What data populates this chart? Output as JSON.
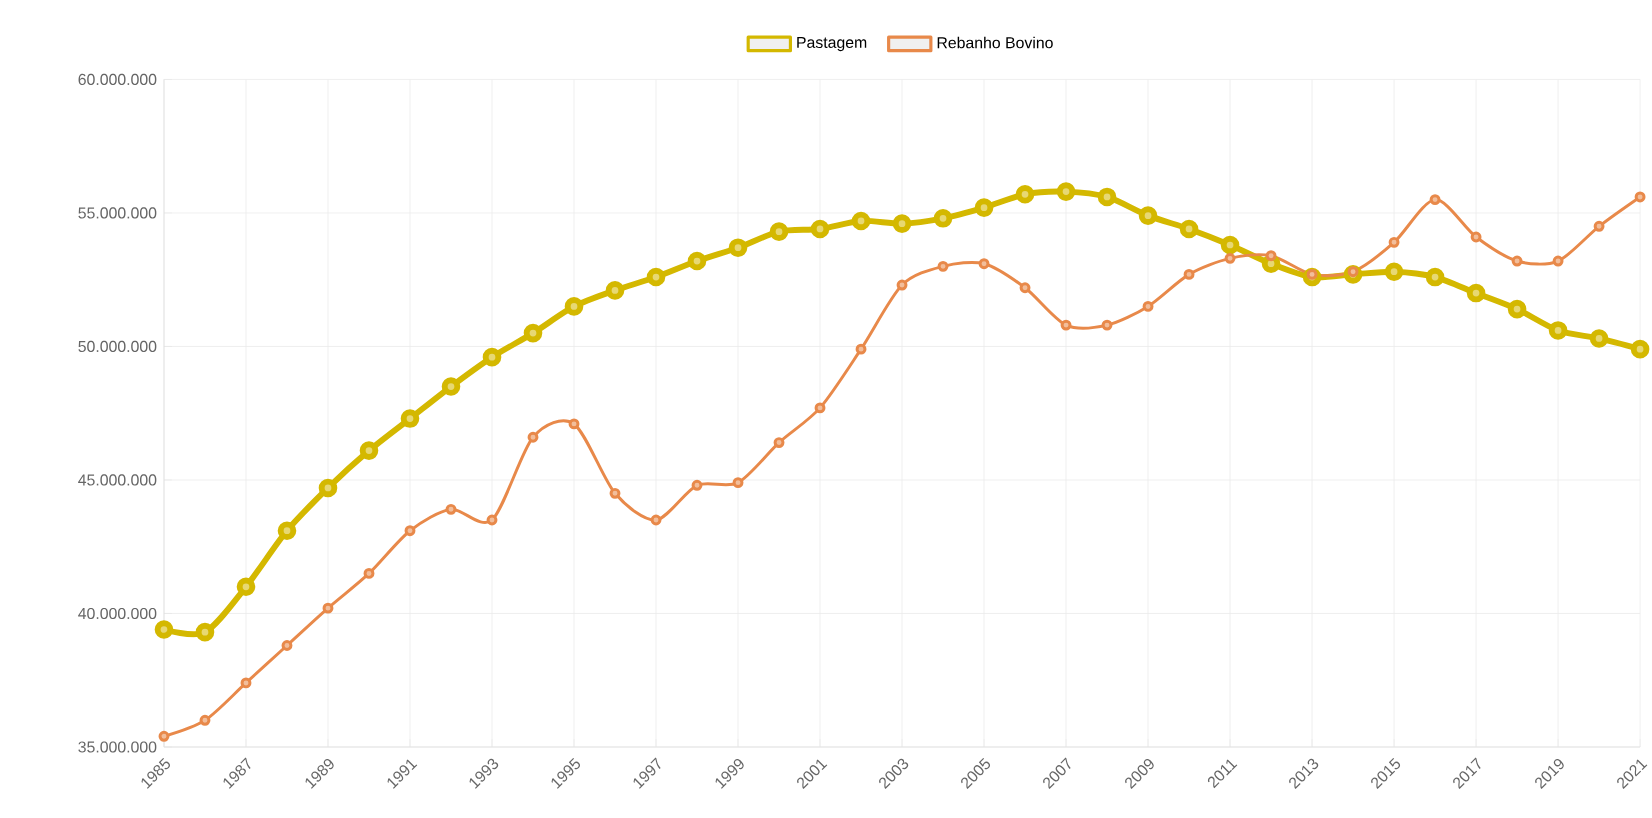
{
  "chart_data": {
    "type": "line",
    "categories": [
      "1985",
      null,
      "1987",
      null,
      "1989",
      null,
      "1991",
      null,
      "1993",
      null,
      "1995",
      null,
      "1997",
      null,
      "1999",
      null,
      "2001",
      null,
      "2003",
      null,
      "2005",
      null,
      "2007",
      null,
      "2009",
      null,
      "2011",
      null,
      "2013",
      null,
      "2015",
      null,
      "2017",
      null,
      "2019",
      null,
      "2021"
    ],
    "series": [
      {
        "name": "Pastagem",
        "color": "#d4b800",
        "values": [
          39400000,
          39300000,
          41000000,
          43100000,
          44700000,
          46100000,
          47300000,
          48500000,
          49600000,
          50500000,
          51500000,
          52100000,
          52600000,
          53200000,
          53700000,
          54300000,
          54400000,
          54700000,
          54600000,
          54800000,
          55200000,
          55700000,
          55800000,
          55600000,
          54900000,
          54400000,
          53800000,
          53100000,
          52600000,
          52700000,
          52800000,
          52600000,
          52000000,
          51400000,
          50600000,
          50300000,
          49900000
        ]
      },
      {
        "name": "Rebanho Bovino",
        "color": "#e8894a",
        "values": [
          35400000,
          36000000,
          37400000,
          38800000,
          40200000,
          41500000,
          43100000,
          43900000,
          43500000,
          46600000,
          47100000,
          44500000,
          43500000,
          44800000,
          44900000,
          46400000,
          47700000,
          49900000,
          52300000,
          53000000,
          53100000,
          52200000,
          50800000,
          50800000,
          51500000,
          52700000,
          53300000,
          53400000,
          52700000,
          52800000,
          53900000,
          55500000,
          54100000,
          53200000,
          53200000,
          54500000,
          55600000
        ]
      }
    ],
    "ylim": [
      35000000,
      60000000
    ],
    "yticks": [
      {
        "value": 35000000,
        "label": "35.000.000"
      },
      {
        "value": 40000000,
        "label": "40.000.000"
      },
      {
        "value": 45000000,
        "label": "45.000.000"
      },
      {
        "value": 50000000,
        "label": "50.000.000"
      },
      {
        "value": 55000000,
        "label": "55.000.000"
      },
      {
        "value": 60000000,
        "label": "60.000.000"
      }
    ],
    "grid": true,
    "legend": "top",
    "marker": "circle"
  }
}
